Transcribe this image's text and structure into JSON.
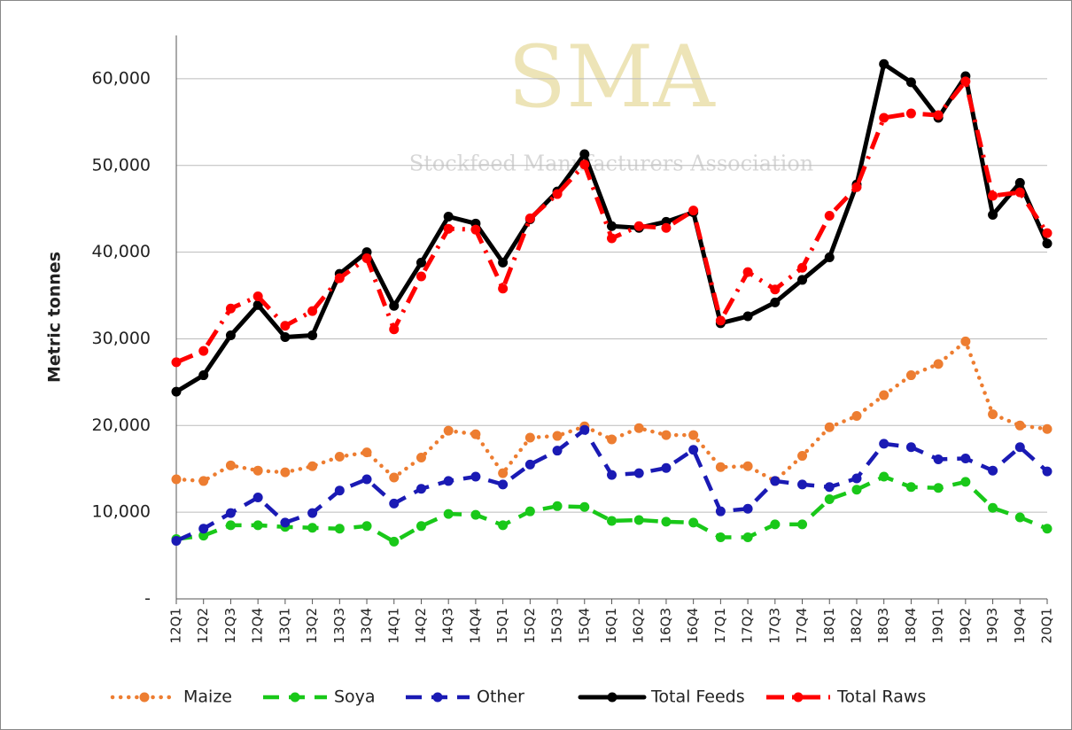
{
  "watermark": {
    "title": "SMA",
    "subtitle": "Stockfeed Manufacturers Association"
  },
  "chart_data": {
    "type": "line",
    "y_label": "Metric tonnes",
    "categories": [
      "12Q1",
      "12Q2",
      "12Q3",
      "12Q4",
      "13Q1",
      "13Q2",
      "13Q3",
      "13Q4",
      "14Q1",
      "14Q2",
      "14Q3",
      "14Q4",
      "15Q1",
      "15Q2",
      "15Q3",
      "15Q4",
      "16Q1",
      "16Q2",
      "16Q3",
      "16Q4",
      "17Q1",
      "17Q2",
      "17Q3",
      "17Q4",
      "18Q1",
      "18Q2",
      "18Q3",
      "18Q4",
      "19Q1",
      "19Q2",
      "19Q3",
      "19Q4",
      "20Q1"
    ],
    "ylim": [
      0,
      65000
    ],
    "yticks": [
      {
        "value": 0,
        "label": "-"
      },
      {
        "value": 10000,
        "label": "10,000"
      },
      {
        "value": 20000,
        "label": "20,000"
      },
      {
        "value": 30000,
        "label": "30,000"
      },
      {
        "value": 40000,
        "label": "40,000"
      },
      {
        "value": 50000,
        "label": "50,000"
      },
      {
        "value": 60000,
        "label": "60,000"
      }
    ],
    "grid": true,
    "legend": "bottom",
    "series": [
      {
        "name": "Maize",
        "color": "#ed7d31",
        "style": "dotted",
        "values": [
          13800,
          13600,
          15400,
          14800,
          14600,
          15300,
          16400,
          16900,
          14000,
          16300,
          19400,
          19000,
          14500,
          18600,
          18800,
          19900,
          18400,
          19700,
          18900,
          18900,
          15200,
          15300,
          13600,
          16500,
          19800,
          21100,
          23500,
          25800,
          27100,
          29700,
          21300,
          20000,
          19600
        ]
      },
      {
        "name": "Soya",
        "color": "#19c819",
        "style": "dashed",
        "values": [
          6900,
          7300,
          8500,
          8500,
          8300,
          8200,
          8100,
          8400,
          6600,
          8400,
          9800,
          9700,
          8500,
          10100,
          10700,
          10600,
          9000,
          9100,
          8900,
          8800,
          7100,
          7100,
          8600,
          8600,
          11500,
          12600,
          14100,
          12900,
          12800,
          13500,
          10500,
          9400,
          8100
        ]
      },
      {
        "name": "Other",
        "color": "#1a1ab4",
        "style": "dashed",
        "values": [
          6700,
          8100,
          9900,
          11700,
          8800,
          9900,
          12500,
          13800,
          11000,
          12700,
          13600,
          14100,
          13200,
          15500,
          17100,
          19500,
          14300,
          14500,
          15100,
          17200,
          10100,
          10400,
          13600,
          13200,
          12900,
          13900,
          17900,
          17500,
          16100,
          16200,
          14800,
          17500,
          14700
        ]
      },
      {
        "name": "Total Feeds",
        "color": "#000000",
        "style": "solid",
        "values": [
          23900,
          25800,
          30400,
          33900,
          30200,
          30400,
          37500,
          40000,
          33800,
          38800,
          44100,
          43300,
          38800,
          43800,
          47000,
          51300,
          43000,
          42800,
          43500,
          44600,
          31800,
          32600,
          34200,
          36800,
          39400,
          47800,
          61700,
          59600,
          55500,
          60300,
          44300,
          48000,
          41000
        ]
      },
      {
        "name": "Total Raws",
        "color": "#ff0000",
        "style": "dashdot",
        "values": [
          27300,
          28600,
          33500,
          34900,
          31500,
          33200,
          37000,
          39300,
          31100,
          37200,
          42700,
          42600,
          35800,
          43900,
          46700,
          50100,
          41600,
          43000,
          42800,
          44800,
          32100,
          37700,
          35700,
          38200,
          44200,
          47500,
          55500,
          56000,
          55800,
          59700,
          46500,
          46900,
          42200
        ]
      }
    ]
  }
}
